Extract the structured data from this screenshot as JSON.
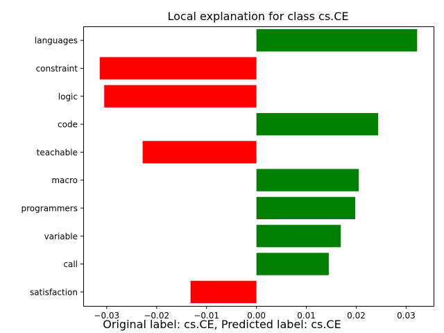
{
  "caption": "Original label: cs.CE, Predicted label: cs.CE",
  "chart_data": {
    "type": "bar",
    "orientation": "horizontal",
    "title": "Local explanation for class cs.CE",
    "xlabel": "",
    "ylabel": "",
    "xlim": [
      -0.0347,
      0.0355
    ],
    "xticks": [
      "-0.03",
      "-0.02",
      "-0.01",
      "0.00",
      "0.01",
      "0.02",
      "0.03"
    ],
    "xtick_values": [
      -0.03,
      -0.02,
      -0.01,
      0.0,
      0.01,
      0.02,
      0.03
    ],
    "grid": false,
    "colors": {
      "positive": "#008000",
      "negative": "#ff0000"
    },
    "categories": [
      "languages",
      "constraint",
      "logic",
      "code",
      "teachable",
      "macro",
      "programmers",
      "variable",
      "call",
      "satisfaction"
    ],
    "values": [
      0.0322,
      -0.0314,
      -0.0305,
      0.0244,
      -0.0228,
      0.0205,
      0.0198,
      0.0169,
      0.0145,
      -0.0132
    ]
  }
}
